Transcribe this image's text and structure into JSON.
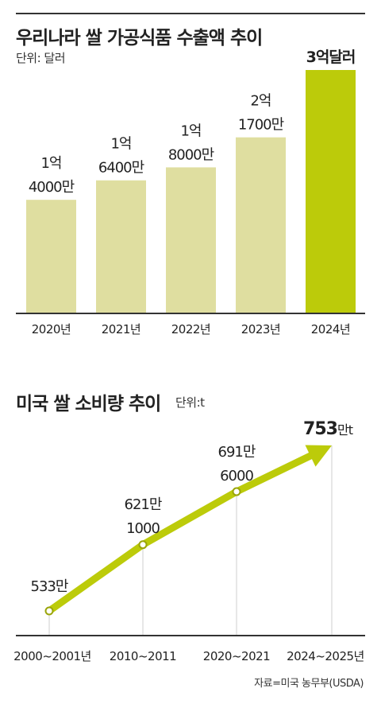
{
  "source": "자료=미국 농무부(USDA)",
  "colors": {
    "bar": "#dfdea0",
    "highlight": "#bccb0a",
    "line": "#bccb0a",
    "axis": "#333333"
  },
  "chart_data": [
    {
      "type": "bar",
      "title": "우리나라 쌀 가공식품 수출액 추이",
      "unit": "단위: 달러",
      "categories": [
        "2020년",
        "2021년",
        "2022년",
        "2023년",
        "2024년"
      ],
      "values": [
        140000000,
        164000000,
        180000000,
        217000000,
        300000000
      ],
      "labels": [
        [
          "1억",
          "4000만"
        ],
        [
          "1억",
          "6400만"
        ],
        [
          "1억",
          "8000만"
        ],
        [
          "2억",
          "1700만"
        ],
        [
          "3억달러"
        ]
      ],
      "highlight_index": 4,
      "ylim": [
        0,
        300000000
      ],
      "grid": false
    },
    {
      "type": "line",
      "title": "미국 쌀 소비량 추이",
      "unit": "단위:t",
      "categories": [
        "2000~2001년",
        "2010~2011",
        "2020~2021",
        "2024~2025년"
      ],
      "values": [
        5330000,
        6211000,
        6916000,
        7530000
      ],
      "labels": [
        [
          "533만"
        ],
        [
          "621만",
          "1000"
        ],
        [
          "691만",
          "6000"
        ],
        [
          "753",
          "만t"
        ]
      ],
      "arrow_end": true,
      "grid": false
    }
  ]
}
